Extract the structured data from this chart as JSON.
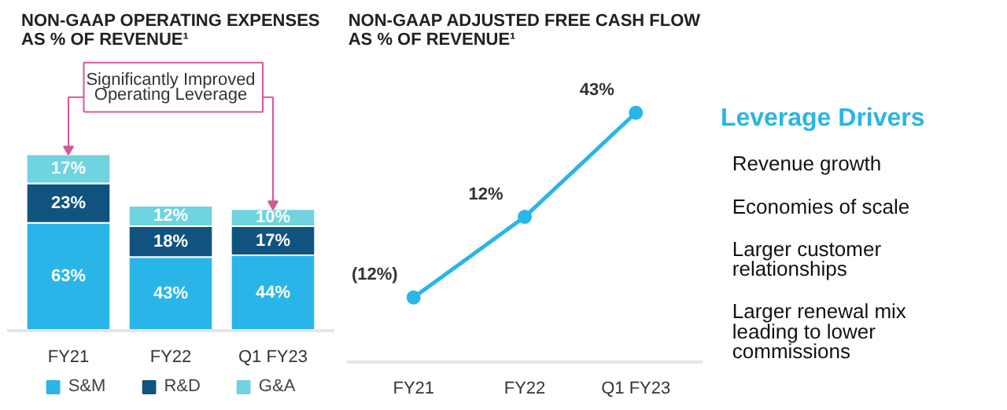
{
  "chart_data": [
    {
      "type": "bar",
      "title": "NON-GAAP OPERATING EXPENSES\nAS % OF REVENUE¹",
      "stacked": true,
      "legend": "bottom",
      "grid": false,
      "categories": [
        "FY21",
        "FY22",
        "Q1 FY23"
      ],
      "series": [
        {
          "name": "S&M",
          "color": "#29b5e8",
          "values": [
            63,
            43,
            44
          ],
          "value_labels": [
            "63%",
            "43%",
            "44%"
          ]
        },
        {
          "name": "R&D",
          "color": "#11537f",
          "values": [
            23,
            18,
            17
          ],
          "value_labels": [
            "23%",
            "18%",
            "17%"
          ]
        },
        {
          "name": "G&A",
          "color": "#6fd3e0",
          "values": [
            17,
            12,
            10
          ],
          "value_labels": [
            "17%",
            "12%",
            "10%"
          ]
        }
      ],
      "annotations": [
        "Significantly Improved Operating Leverage"
      ]
    },
    {
      "type": "line",
      "title": "NON-GAAP ADJUSTED FREE CASH FLOW\nAS % OF REVENUE¹",
      "marker": "circle",
      "grid": false,
      "categories": [
        "FY21",
        "FY22",
        "Q1 FY23"
      ],
      "series": [
        {
          "color": "#29b5e8",
          "values": [
            -12,
            12,
            43
          ],
          "value_labels": [
            "(12%)",
            "12%",
            "43%"
          ]
        }
      ]
    },
    {
      "type": "other",
      "title": "Leverage Drivers",
      "annotations": [
        "Revenue growth",
        "Economies of scale",
        "Larger customer relationships",
        "Larger renewal mix leading to lower commissions"
      ]
    }
  ]
}
